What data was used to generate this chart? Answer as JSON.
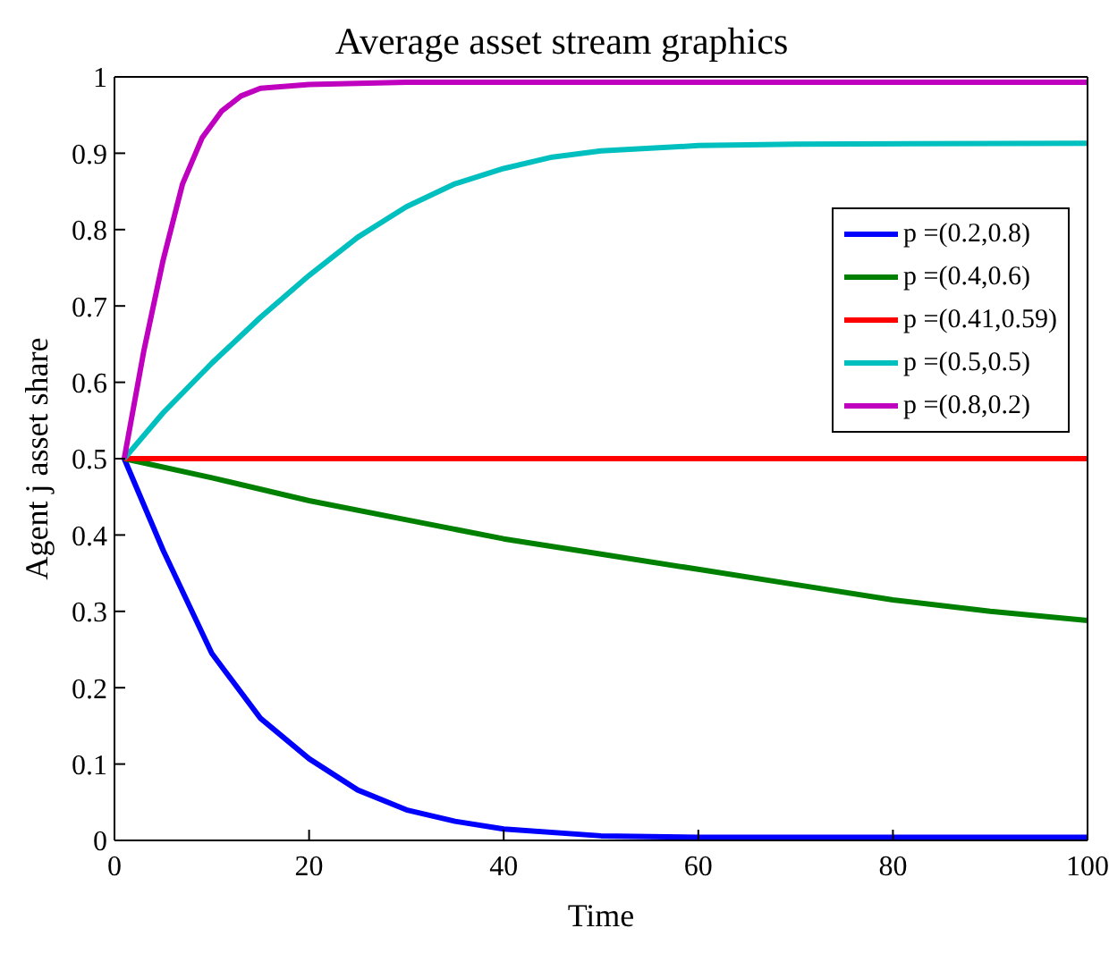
{
  "chart_data": {
    "type": "line",
    "title": "Average asset stream graphics",
    "xlabel": "Time",
    "ylabel": "Agent j asset share",
    "xlim": [
      0,
      100
    ],
    "xticks": [
      0,
      20,
      40,
      60,
      80,
      100
    ],
    "ylim": [
      0,
      1
    ],
    "yticks": [
      0,
      0.1,
      0.2,
      0.3,
      0.4,
      0.5,
      0.6,
      0.7,
      0.8,
      0.9,
      1
    ],
    "legend": "top right",
    "marker": "none",
    "line_style": "solid",
    "series": [
      {
        "name": "p =(0.2,0.8)",
        "color": "#0000ff",
        "x": [
          1,
          5,
          10,
          15,
          20,
          25,
          30,
          35,
          40,
          50,
          60,
          80,
          100
        ],
        "values": [
          0.5,
          0.38,
          0.245,
          0.16,
          0.107,
          0.066,
          0.04,
          0.025,
          0.015,
          0.006,
          0.004,
          0.004,
          0.004
        ]
      },
      {
        "name": "p =(0.4,0.6)",
        "color": "#008000",
        "x": [
          1,
          10,
          20,
          30,
          40,
          50,
          60,
          70,
          80,
          90,
          100
        ],
        "values": [
          0.5,
          0.475,
          0.445,
          0.42,
          0.395,
          0.375,
          0.355,
          0.335,
          0.315,
          0.3,
          0.288
        ]
      },
      {
        "name": "p =(0.41,0.59)",
        "color": "#ff0000",
        "x": [
          1,
          100
        ],
        "values": [
          0.5,
          0.5
        ]
      },
      {
        "name": "p =(0.5,0.5)",
        "color": "#00bfbf",
        "x": [
          1,
          5,
          10,
          15,
          20,
          25,
          30,
          35,
          40,
          45,
          50,
          60,
          70,
          100
        ],
        "values": [
          0.5,
          0.56,
          0.625,
          0.685,
          0.74,
          0.79,
          0.83,
          0.86,
          0.88,
          0.895,
          0.903,
          0.91,
          0.912,
          0.913
        ]
      },
      {
        "name": "p =(0.8,0.2)",
        "color": "#bf00bf",
        "x": [
          1,
          3,
          5,
          7,
          9,
          11,
          13,
          15,
          20,
          30,
          100
        ],
        "values": [
          0.5,
          0.64,
          0.76,
          0.86,
          0.92,
          0.955,
          0.975,
          0.985,
          0.99,
          0.993,
          0.993
        ]
      }
    ]
  }
}
